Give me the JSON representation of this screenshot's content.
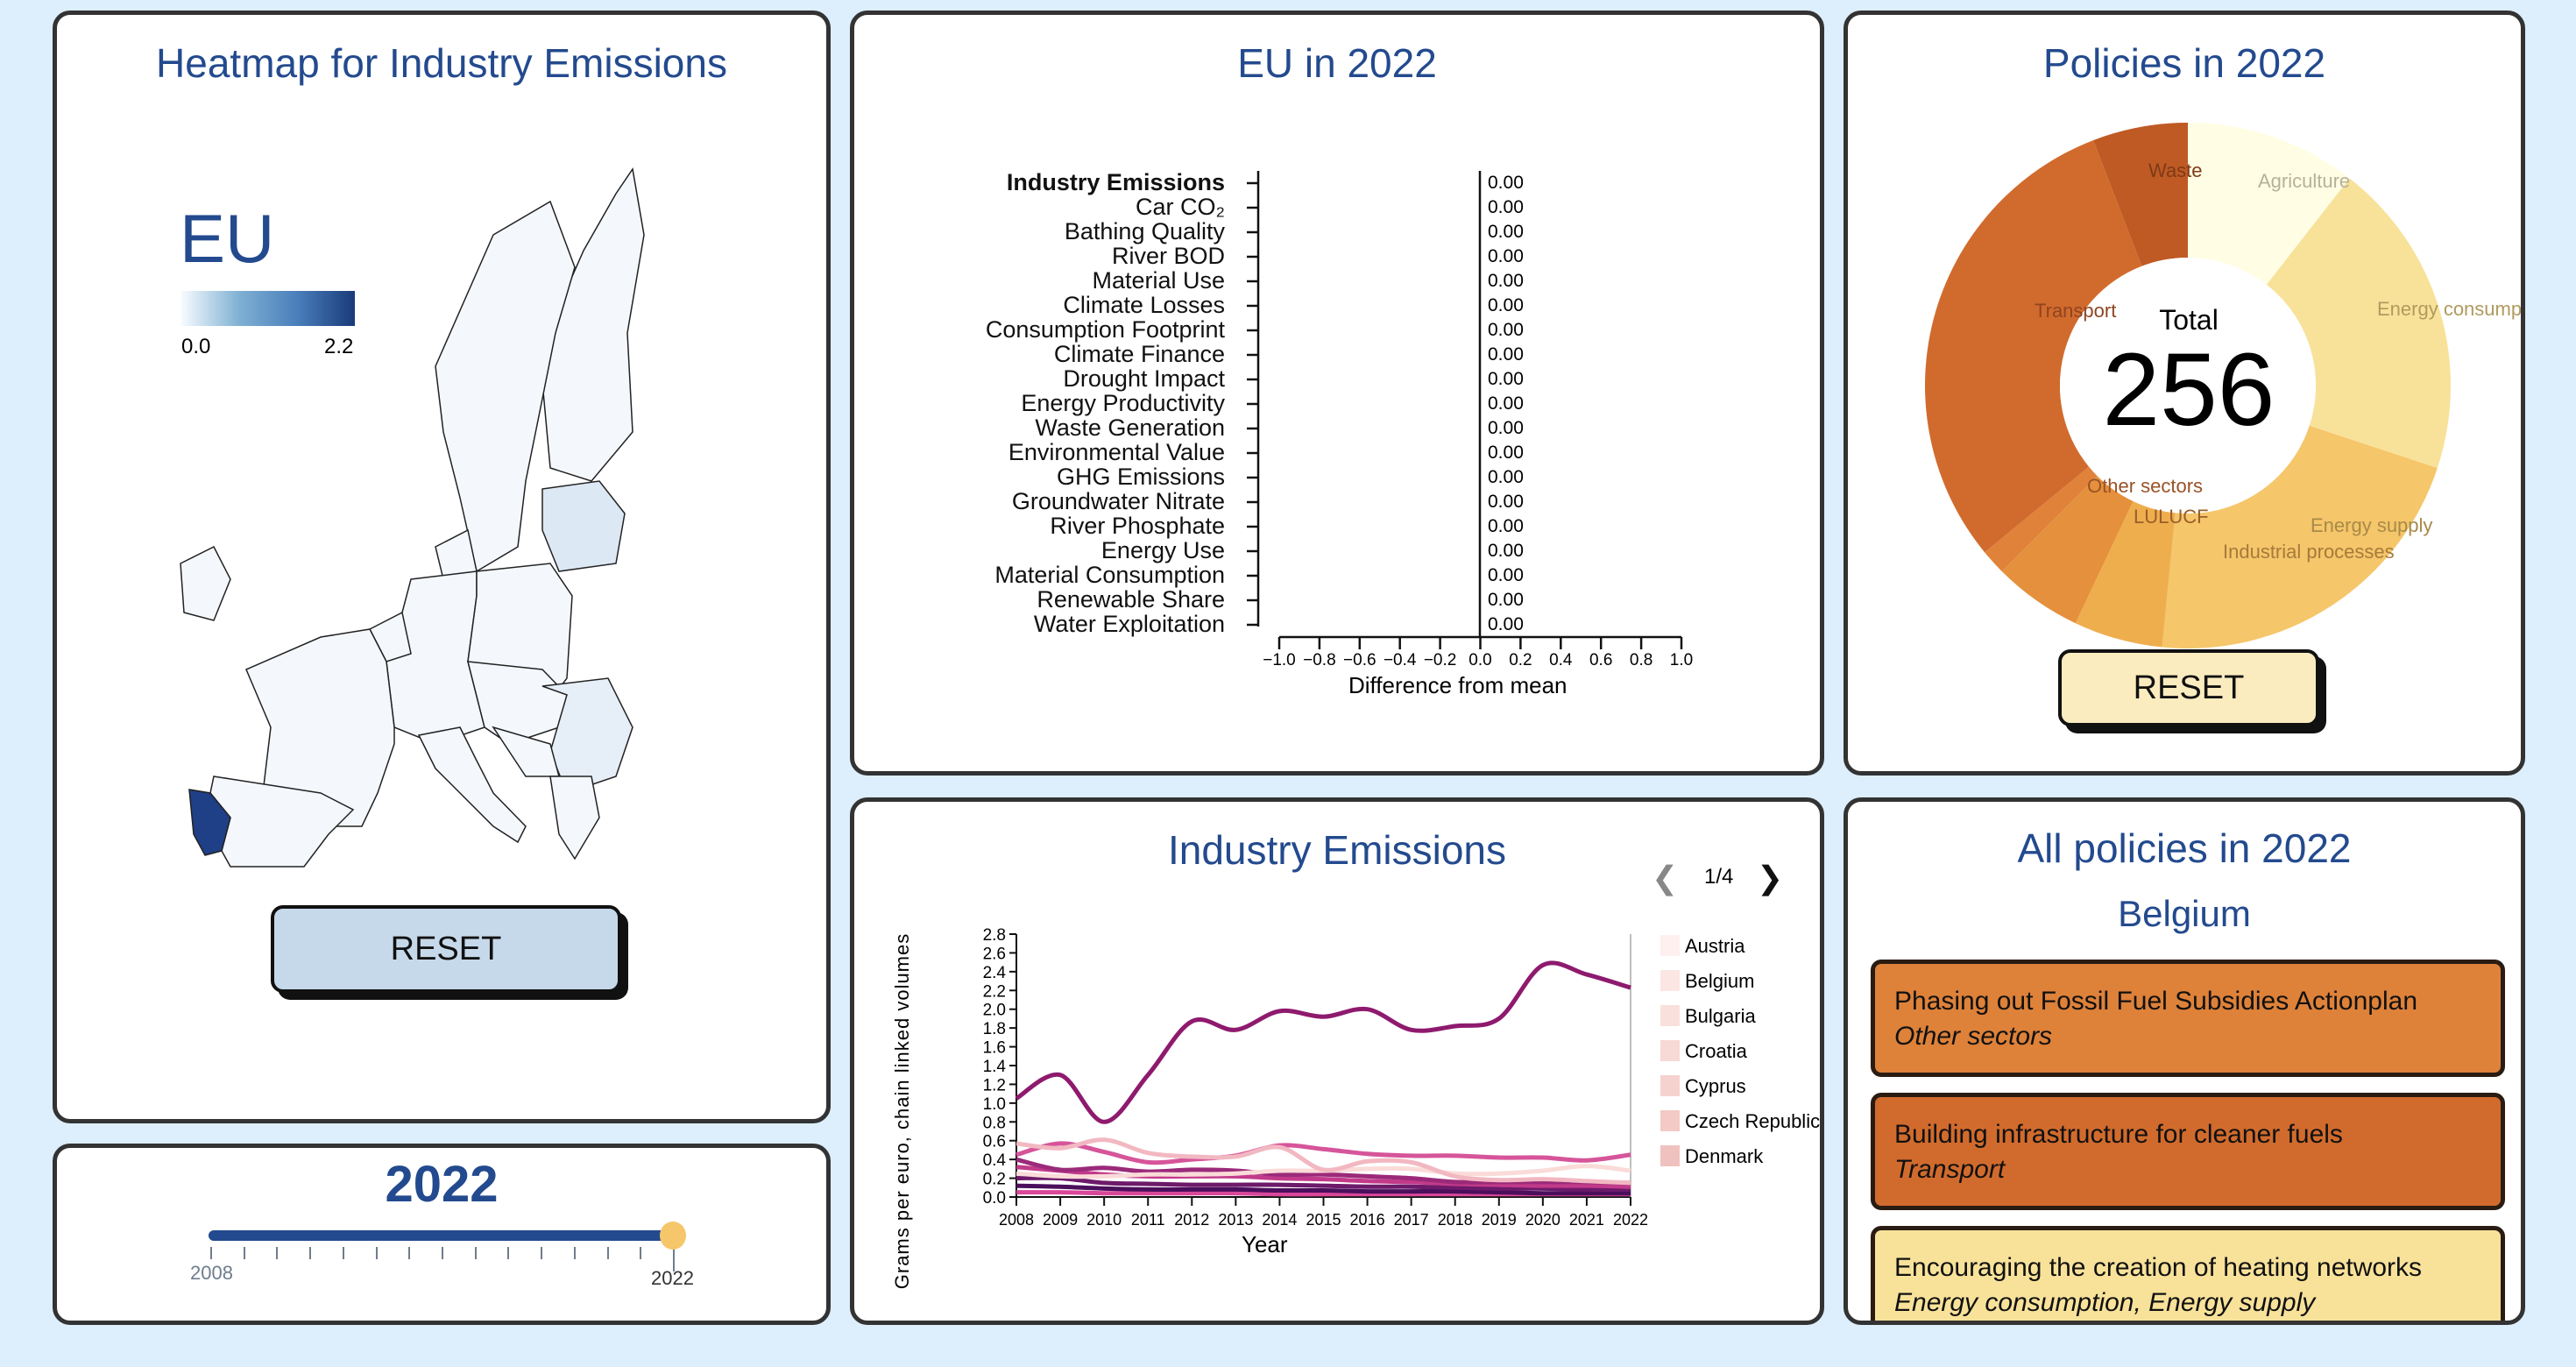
{
  "heatmap": {
    "title": "Heatmap for Industry Emissions",
    "region": "EU",
    "legend_min": "0.0",
    "legend_max": "2.2",
    "legend_colors": [
      "#f7fbff",
      "#7fb0d3",
      "#1a3a7a"
    ],
    "reset_label": "RESET",
    "highlighted_country": "Portugal"
  },
  "year": {
    "title": "2022",
    "min_label": "2008",
    "max_label": "2022",
    "min": 2008,
    "max": 2022,
    "value": 2022
  },
  "eu": {
    "title": "EU in 2022",
    "xlabel": "Difference from mean",
    "xticks": [
      "−1.0",
      "−0.8",
      "−0.6",
      "−0.4",
      "−0.2",
      "0.0",
      "0.2",
      "0.4",
      "0.6",
      "0.8",
      "1.0"
    ],
    "rows": [
      {
        "label": "Industry Emissions",
        "value": "0.00"
      },
      {
        "label": "Car CO₂",
        "value": "0.00"
      },
      {
        "label": "Bathing Quality",
        "value": "0.00"
      },
      {
        "label": "River BOD",
        "value": "0.00"
      },
      {
        "label": "Material Use",
        "value": "0.00"
      },
      {
        "label": "Climate Losses",
        "value": "0.00"
      },
      {
        "label": "Consumption Footprint",
        "value": "0.00"
      },
      {
        "label": "Climate Finance",
        "value": "0.00"
      },
      {
        "label": "Drought Impact",
        "value": "0.00"
      },
      {
        "label": "Energy Productivity",
        "value": "0.00"
      },
      {
        "label": "Waste Generation",
        "value": "0.00"
      },
      {
        "label": "Environmental Value",
        "value": "0.00"
      },
      {
        "label": "GHG Emissions",
        "value": "0.00"
      },
      {
        "label": "Groundwater Nitrate",
        "value": "0.00"
      },
      {
        "label": "River Phosphate",
        "value": "0.00"
      },
      {
        "label": "Energy Use",
        "value": "0.00"
      },
      {
        "label": "Material Consumption",
        "value": "0.00"
      },
      {
        "label": "Renewable Share",
        "value": "0.00"
      },
      {
        "label": "Water Exploitation",
        "value": "0.00"
      }
    ]
  },
  "policies": {
    "title": "Policies in 2022",
    "total_label": "Total",
    "total": "256",
    "reset_label": "RESET"
  },
  "all_policies": {
    "title": "All policies in 2022",
    "country": "Belgium",
    "items": [
      {
        "name": "Phasing out Fossil Fuel Subsidies Actionplan",
        "category": "Other sectors",
        "color": "#de8139"
      },
      {
        "name": "Building infrastructure for cleaner fuels",
        "category": "Transport",
        "color": "#d16b2d"
      },
      {
        "name": "Encouraging the creation of heating networks",
        "category": "Energy consumption, Energy supply",
        "color": "#f8e29a"
      }
    ]
  },
  "industry": {
    "title": "Industry Emissions",
    "page": "1/4",
    "prev_icon": "chevron-left",
    "next_icon": "chevron-right",
    "legend": [
      {
        "name": "Austria",
        "color": "#fdf0ee"
      },
      {
        "name": "Belgium",
        "color": "#fbe6e3"
      },
      {
        "name": "Bulgaria",
        "color": "#f9e0dc"
      },
      {
        "name": "Croatia",
        "color": "#f7d9d5"
      },
      {
        "name": "Cyprus",
        "color": "#f5d2ce"
      },
      {
        "name": "Czech Republic",
        "color": "#f3cac6"
      },
      {
        "name": "Denmark",
        "color": "#f0c2bf"
      }
    ]
  },
  "chart_data": [
    {
      "type": "line",
      "title": "Industry Emissions",
      "xlabel": "Year",
      "ylabel": "Grams per euro, chain linked volumes",
      "x": [
        2008,
        2009,
        2010,
        2011,
        2012,
        2013,
        2014,
        2015,
        2016,
        2017,
        2018,
        2019,
        2020,
        2021,
        2022
      ],
      "xlim": [
        2008,
        2022
      ],
      "ylim": [
        0,
        2.8
      ],
      "yticks": [
        "0.0",
        "0.2",
        "0.4",
        "0.6",
        "0.8",
        "1.0",
        "1.2",
        "1.4",
        "1.6",
        "1.8",
        "2.0",
        "2.2",
        "2.4",
        "2.6",
        "2.8"
      ],
      "xticks": [
        "2008",
        "2009",
        "2010",
        "2011",
        "2012",
        "2013",
        "2014",
        "2015",
        "2016",
        "2017",
        "2018",
        "2019",
        "2020",
        "2021",
        "2022"
      ],
      "grid": false,
      "legend_placement": "right",
      "series": [
        {
          "color": "#8e1a6e",
          "values": [
            1.05,
            1.3,
            0.8,
            1.3,
            1.87,
            1.78,
            1.98,
            1.92,
            2.0,
            1.78,
            1.82,
            1.9,
            2.47,
            2.37,
            2.23
          ]
        },
        {
          "color": "#f2b8c2",
          "values": [
            0.57,
            0.52,
            0.61,
            0.47,
            0.43,
            0.43,
            0.53,
            0.29,
            0.38,
            0.37,
            0.22,
            0.18,
            0.19,
            0.17,
            0.15
          ]
        },
        {
          "color": "#fadbd8",
          "values": [
            0.25,
            0.22,
            0.22,
            0.24,
            0.24,
            0.25,
            0.28,
            0.28,
            0.3,
            0.3,
            0.25,
            0.25,
            0.28,
            0.33,
            0.28
          ]
        },
        {
          "color": "#d6559a",
          "values": [
            0.45,
            0.57,
            0.48,
            0.37,
            0.4,
            0.44,
            0.55,
            0.51,
            0.46,
            0.44,
            0.44,
            0.42,
            0.42,
            0.39,
            0.45
          ]
        },
        {
          "color": "#9b2a7a",
          "values": [
            0.4,
            0.29,
            0.31,
            0.27,
            0.29,
            0.28,
            0.24,
            0.24,
            0.22,
            0.2,
            0.16,
            0.16,
            0.16,
            0.16,
            0.15
          ]
        },
        {
          "color": "#c23a8a",
          "values": [
            0.32,
            0.28,
            0.24,
            0.22,
            0.22,
            0.22,
            0.2,
            0.19,
            0.17,
            0.16,
            0.14,
            0.13,
            0.12,
            0.12,
            0.11
          ]
        },
        {
          "color": "#6d1a6a",
          "values": [
            0.2,
            0.2,
            0.15,
            0.14,
            0.13,
            0.13,
            0.13,
            0.12,
            0.11,
            0.11,
            0.1,
            0.09,
            0.09,
            0.08,
            0.08
          ]
        },
        {
          "color": "#4b0f5c",
          "values": [
            0.12,
            0.11,
            0.09,
            0.08,
            0.08,
            0.08,
            0.07,
            0.07,
            0.06,
            0.06,
            0.06,
            0.05,
            0.04,
            0.04,
            0.04
          ]
        },
        {
          "color": "#d9479a",
          "values": [
            0.05,
            0.05,
            0.04,
            0.04,
            0.04,
            0.04,
            0.03,
            0.03,
            0.03,
            0.03,
            0.03,
            0.03,
            0.03,
            0.03,
            0.03
          ]
        }
      ]
    },
    {
      "type": "pie",
      "title": "Policies in 2022",
      "total": 256,
      "slices": [
        {
          "label": "Agriculture",
          "value": 27,
          "color": "#fffde3",
          "text_color": "#b5b29a"
        },
        {
          "label": "Energy consumption",
          "value": 50,
          "color": "#f8e29a",
          "text_color": "#b09a5e"
        },
        {
          "label": "Energy supply",
          "value": 55,
          "color": "#f5c66a",
          "text_color": "#a88a48"
        },
        {
          "label": "Industrial processes",
          "value": 14,
          "color": "#efae4e",
          "text_color": "#a67a3a"
        },
        {
          "label": "LULUCF",
          "value": 14,
          "color": "#e5903c",
          "text_color": "#9a5e2a"
        },
        {
          "label": "Other sectors",
          "value": 4,
          "color": "#e0823a",
          "text_color": "#995228"
        },
        {
          "label": "Transport",
          "value": 77,
          "color": "#d16b2d",
          "text_color": "#8e4520"
        },
        {
          "label": "Waste",
          "value": 15,
          "color": "#bf5a24",
          "text_color": "#7e3a18"
        }
      ]
    }
  ]
}
